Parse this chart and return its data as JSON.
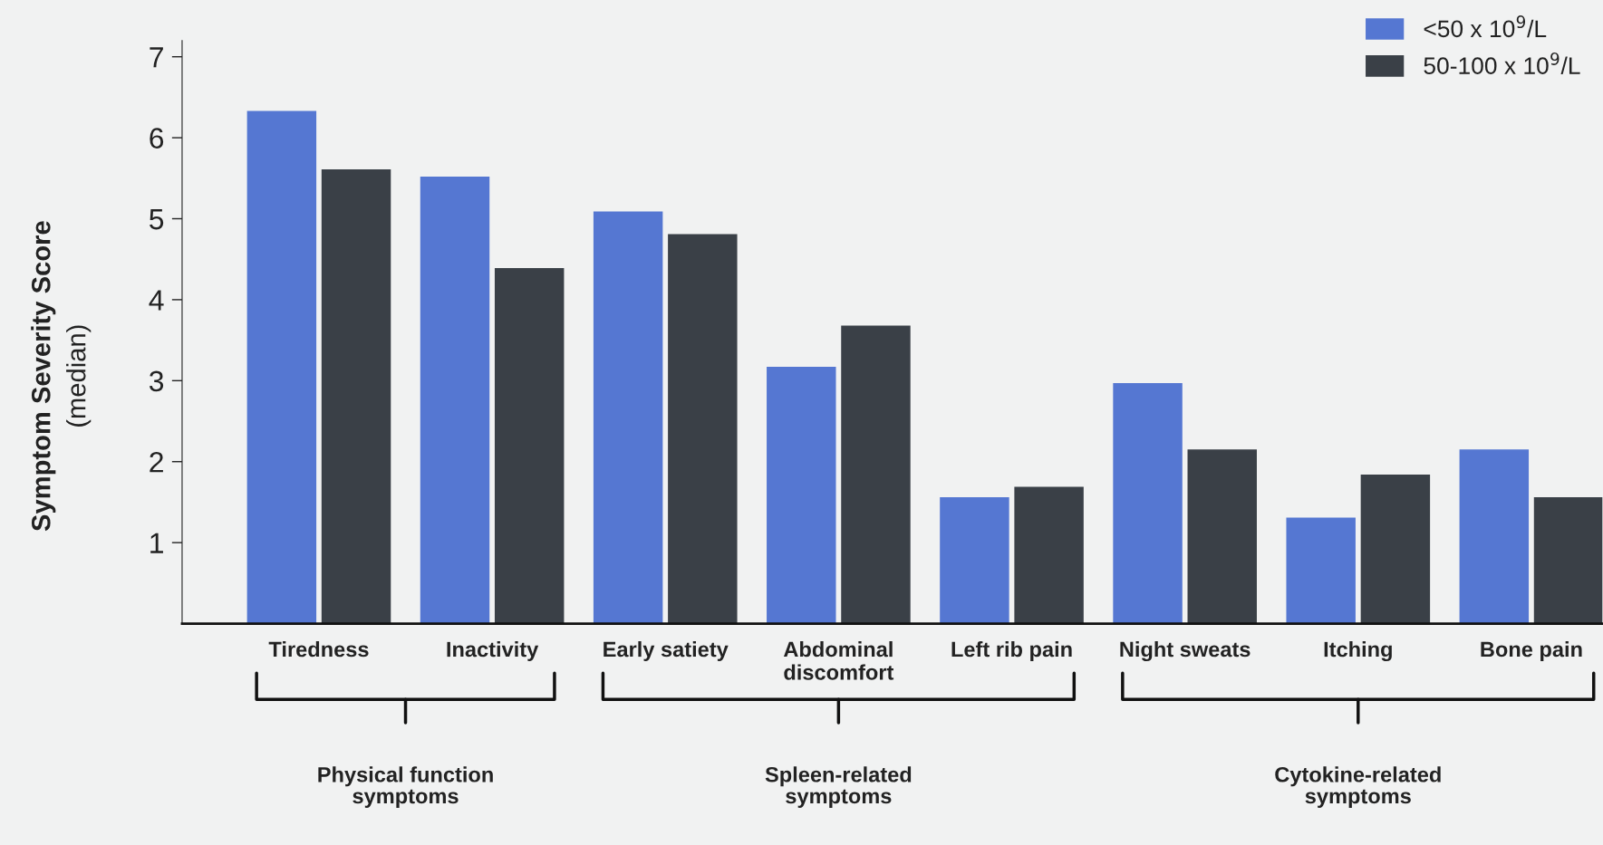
{
  "chart_data": {
    "type": "bar",
    "ylabel": "Symptom Severity Score\n(median)",
    "categories": [
      "Tiredness",
      "Inactivity",
      "Early satiety",
      "Abdominal\ndiscomfort",
      "Left rib pain",
      "Night sweats",
      "Itching",
      "Bone pain"
    ],
    "series": [
      {
        "name": "<50 x 10$^{9}$/L",
        "color": "#5577d2",
        "values": [
          6.33,
          5.52,
          5.09,
          3.17,
          1.56,
          2.97,
          1.31,
          2.15
        ]
      },
      {
        "name": "50-100 x 10$^{9}$/L",
        "color": "#3a4047",
        "values": [
          5.61,
          4.39,
          4.81,
          3.68,
          1.69,
          2.15,
          1.84,
          1.56
        ]
      }
    ],
    "ylim": [
      0,
      7.2
    ],
    "yticks": [
      1,
      2,
      3,
      4,
      5,
      6,
      7
    ],
    "annotations": [
      "Physical function\nsymptoms",
      "Spleen-related\nsymptoms",
      "Cytokine-related\nsymptoms"
    ],
    "legend": "top right",
    "grid": false
  }
}
